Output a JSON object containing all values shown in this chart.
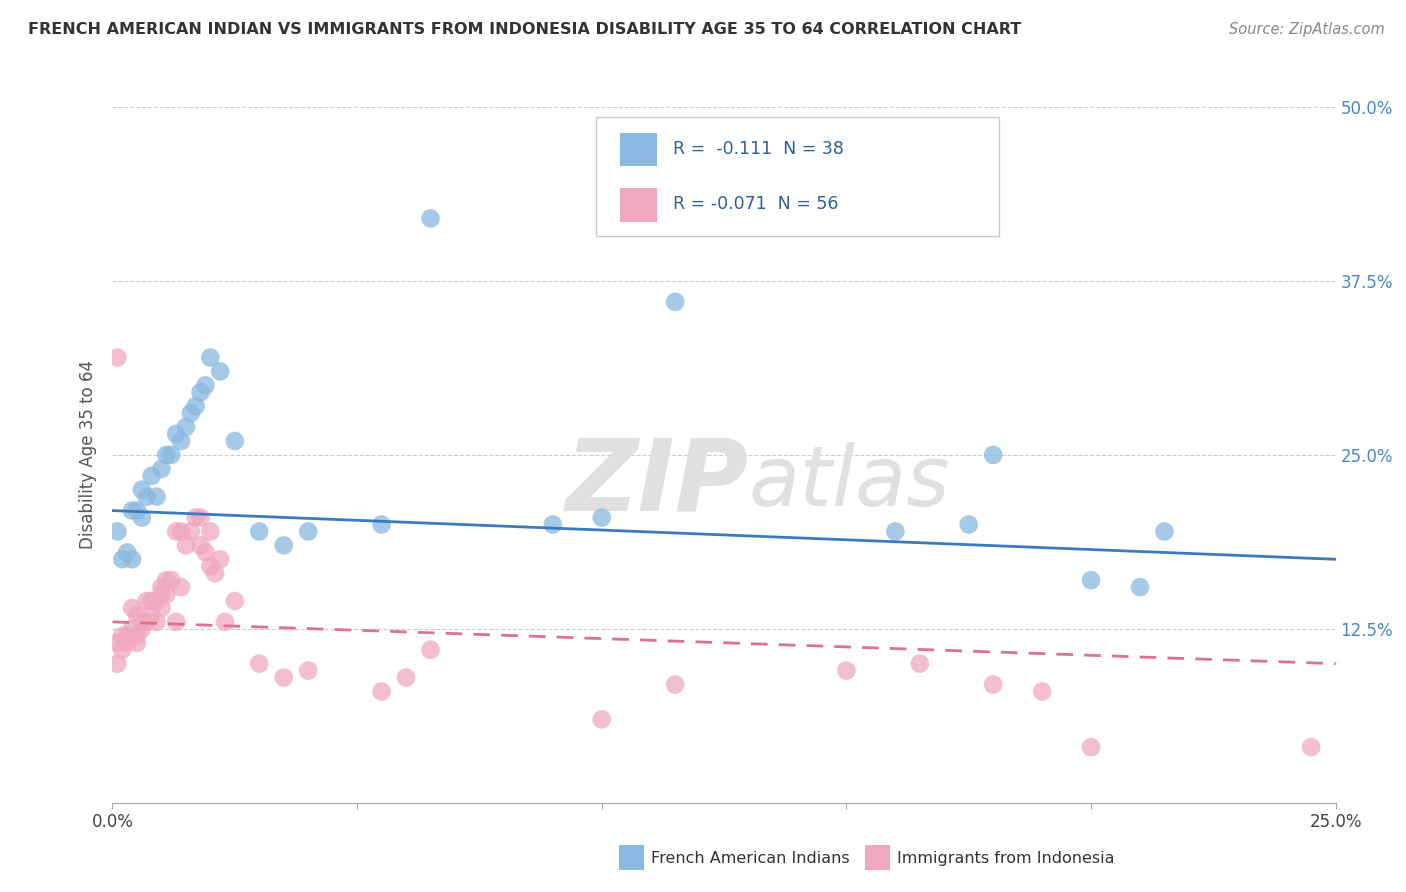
{
  "title": "FRENCH AMERICAN INDIAN VS IMMIGRANTS FROM INDONESIA DISABILITY AGE 35 TO 64 CORRELATION CHART",
  "source": "Source: ZipAtlas.com",
  "ylabel": "Disability Age 35 to 64",
  "xlim": [
    0.0,
    0.25
  ],
  "ylim": [
    0.0,
    0.5
  ],
  "xticks": [
    0.0,
    0.05,
    0.1,
    0.15,
    0.2,
    0.25
  ],
  "yticks": [
    0.0,
    0.125,
    0.25,
    0.375,
    0.5
  ],
  "blue_color": "#89b8e0",
  "pink_color": "#f0a8be",
  "blue_line_color": "#3a7abf",
  "pink_line_color": "#e07090",
  "watermark_zip": "ZIP",
  "watermark_atlas": "atlas",
  "legend_label1": "French American Indians",
  "legend_label2": "Immigrants from Indonesia",
  "blue_scatter_x": [
    0.001,
    0.002,
    0.003,
    0.004,
    0.004,
    0.005,
    0.006,
    0.006,
    0.007,
    0.008,
    0.009,
    0.01,
    0.011,
    0.012,
    0.013,
    0.014,
    0.015,
    0.016,
    0.017,
    0.018,
    0.019,
    0.02,
    0.022,
    0.025,
    0.03,
    0.035,
    0.04,
    0.055,
    0.065,
    0.09,
    0.1,
    0.115,
    0.16,
    0.175,
    0.18,
    0.2,
    0.21,
    0.215
  ],
  "blue_scatter_y": [
    0.195,
    0.175,
    0.18,
    0.175,
    0.21,
    0.21,
    0.205,
    0.225,
    0.22,
    0.235,
    0.22,
    0.24,
    0.25,
    0.25,
    0.265,
    0.26,
    0.27,
    0.28,
    0.285,
    0.295,
    0.3,
    0.32,
    0.31,
    0.26,
    0.195,
    0.185,
    0.195,
    0.2,
    0.42,
    0.2,
    0.205,
    0.36,
    0.195,
    0.2,
    0.25,
    0.16,
    0.155,
    0.195
  ],
  "pink_scatter_x": [
    0.001,
    0.001,
    0.001,
    0.002,
    0.002,
    0.003,
    0.003,
    0.004,
    0.004,
    0.005,
    0.005,
    0.005,
    0.006,
    0.006,
    0.007,
    0.007,
    0.008,
    0.008,
    0.009,
    0.009,
    0.01,
    0.01,
    0.01,
    0.011,
    0.011,
    0.012,
    0.013,
    0.013,
    0.014,
    0.014,
    0.015,
    0.016,
    0.017,
    0.018,
    0.018,
    0.019,
    0.02,
    0.02,
    0.021,
    0.022,
    0.023,
    0.025,
    0.03,
    0.035,
    0.04,
    0.055,
    0.06,
    0.065,
    0.1,
    0.115,
    0.15,
    0.165,
    0.18,
    0.19,
    0.2,
    0.245
  ],
  "pink_scatter_y": [
    0.32,
    0.115,
    0.1,
    0.11,
    0.12,
    0.115,
    0.12,
    0.125,
    0.14,
    0.115,
    0.12,
    0.135,
    0.125,
    0.13,
    0.13,
    0.145,
    0.135,
    0.145,
    0.13,
    0.145,
    0.14,
    0.15,
    0.155,
    0.15,
    0.16,
    0.16,
    0.195,
    0.13,
    0.195,
    0.155,
    0.185,
    0.195,
    0.205,
    0.185,
    0.205,
    0.18,
    0.17,
    0.195,
    0.165,
    0.175,
    0.13,
    0.145,
    0.1,
    0.09,
    0.095,
    0.08,
    0.09,
    0.11,
    0.06,
    0.085,
    0.095,
    0.1,
    0.085,
    0.08,
    0.04,
    0.04
  ],
  "blue_line_x0": 0.0,
  "blue_line_x1": 0.25,
  "blue_line_y0": 0.21,
  "blue_line_y1": 0.175,
  "pink_line_x0": 0.0,
  "pink_line_x1": 0.25,
  "pink_line_y0": 0.13,
  "pink_line_y1": 0.1
}
